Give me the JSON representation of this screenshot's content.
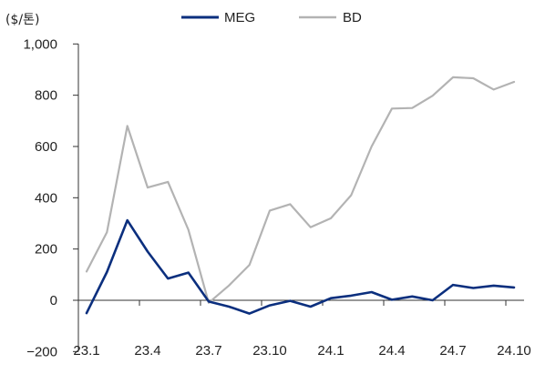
{
  "chart_data": {
    "type": "line",
    "unit_label": "($/톤)",
    "categories": [
      "23.1",
      "23.2",
      "23.3",
      "23.4",
      "23.5",
      "23.6",
      "23.7",
      "23.8",
      "23.9",
      "23.10",
      "23.11",
      "23.12",
      "24.1",
      "24.2",
      "24.3",
      "24.4",
      "24.5",
      "24.6",
      "24.7",
      "24.8",
      "24.9",
      "24.10"
    ],
    "x_tick_labels": [
      "23.1",
      "23.4",
      "23.7",
      "23.10",
      "24.1",
      "24.4",
      "24.7",
      "24.10"
    ],
    "x_tick_indices": [
      0,
      3,
      6,
      9,
      12,
      15,
      18,
      21
    ],
    "y_ticks": [
      -200,
      0,
      200,
      400,
      600,
      800,
      1000
    ],
    "y_tick_labels": [
      "−200",
      "0",
      "200",
      "400",
      "600",
      "800",
      "1,000"
    ],
    "ylim": [
      -200,
      1000
    ],
    "legend_position": "top-center",
    "series": [
      {
        "name": "MEG",
        "color": "#0b2f7e",
        "values": [
          -50,
          110,
          312,
          190,
          85,
          108,
          -5,
          -25,
          -52,
          -20,
          -2,
          -25,
          8,
          18,
          32,
          2,
          15,
          0,
          60,
          48,
          57,
          50
        ]
      },
      {
        "name": "BD",
        "color": "#b3b3b3",
        "values": [
          112,
          265,
          680,
          440,
          462,
          275,
          -10,
          58,
          138,
          350,
          375,
          285,
          320,
          410,
          600,
          748,
          750,
          798,
          870,
          866,
          822,
          852
        ]
      }
    ]
  }
}
